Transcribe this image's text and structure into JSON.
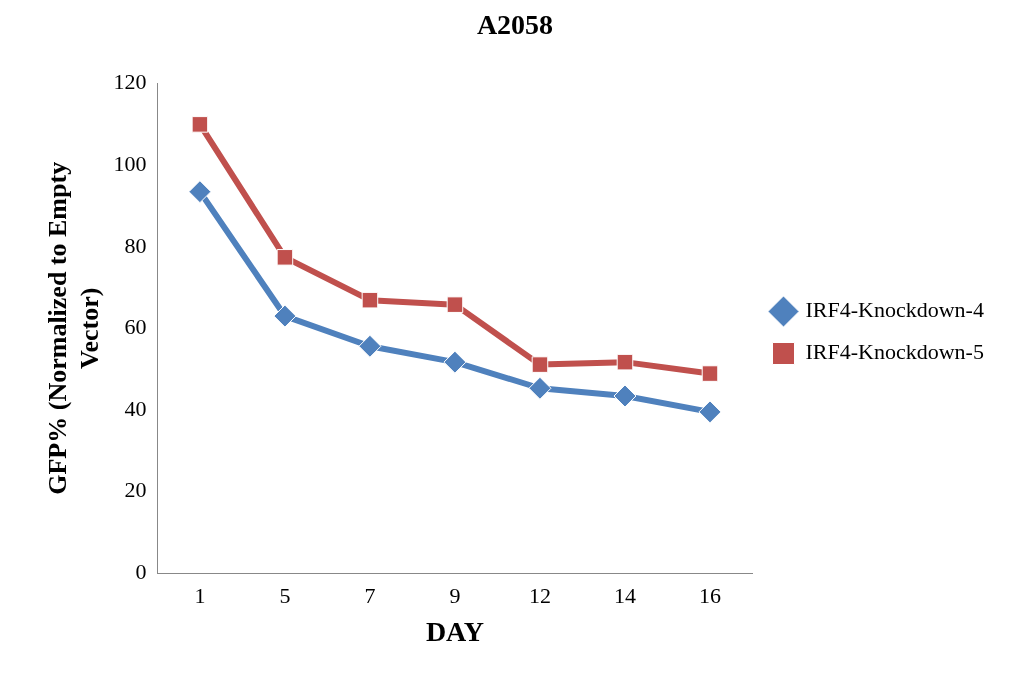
{
  "chart_data": {
    "type": "line",
    "title": "A2058",
    "xlabel": "DAY",
    "ylabel": "GFP% (Normalized to Empty Vector)",
    "categories": [
      "1",
      "5",
      "7",
      "9",
      "12",
      "14",
      "16"
    ],
    "ylim": [
      0,
      120
    ],
    "yticks": [
      0,
      20,
      40,
      60,
      80,
      100,
      120
    ],
    "grid": false,
    "legend": "right",
    "line_style": "solid",
    "series": [
      {
        "name": "IRF4-Knockdown-4",
        "color": "#4f81bd",
        "marker": "diamond",
        "values": [
          93.5,
          63,
          55.6,
          51.7,
          45.3,
          43.4,
          39.5
        ]
      },
      {
        "name": "IRF4-Knockdown-5",
        "color": "#c0504d",
        "marker": "square",
        "values": [
          110,
          77.4,
          66.9,
          65.8,
          51.1,
          51.7,
          48.9
        ]
      }
    ]
  }
}
